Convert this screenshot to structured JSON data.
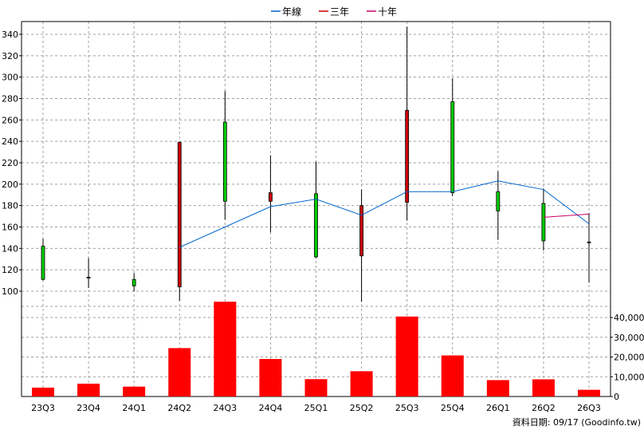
{
  "chart_data": {
    "type": "candlestick",
    "legend": {
      "placement": "top-center",
      "entries": [
        {
          "label": "年線",
          "color": "#0066cc"
        },
        {
          "label": "三年",
          "color": "#cc0000"
        },
        {
          "label": "十年",
          "color": "#cc0066"
        }
      ]
    },
    "categories": [
      "23Q3",
      "23Q4",
      "24Q1",
      "24Q2",
      "24Q3",
      "24Q4",
      "25Q1",
      "25Q2",
      "25Q3",
      "25Q4",
      "26Q1",
      "26Q2",
      "26Q3"
    ],
    "price_axis": {
      "ylim": [
        90,
        350
      ],
      "ticks": [
        100,
        120,
        140,
        160,
        180,
        200,
        220,
        240,
        260,
        280,
        300,
        320,
        340
      ]
    },
    "candles": [
      {
        "open": 111,
        "high": 149,
        "low": 110,
        "close": 142
      },
      {
        "open": 113,
        "high": 131,
        "low": 103,
        "close": 113
      },
      {
        "open": 105,
        "high": 117,
        "low": 100,
        "close": 111
      },
      {
        "open": 239,
        "high": 240,
        "low": 91,
        "close": 104
      },
      {
        "open": 184,
        "high": 287,
        "low": 167,
        "close": 258
      },
      {
        "open": 192,
        "high": 227,
        "low": 155,
        "close": 184
      },
      {
        "open": 132,
        "high": 221,
        "low": 131,
        "close": 191
      },
      {
        "open": 180,
        "high": 195,
        "low": 90,
        "close": 133
      },
      {
        "open": 269,
        "high": 347,
        "low": 166,
        "close": 183
      },
      {
        "open": 192,
        "high": 299,
        "low": 189,
        "close": 277
      },
      {
        "open": 175,
        "high": 212,
        "low": 148,
        "close": 193
      },
      {
        "open": 147,
        "high": 196,
        "low": 138,
        "close": 182
      },
      {
        "open": 146,
        "high": 173,
        "low": 108,
        "close": 146
      }
    ],
    "candle_colors": {
      "up": "#00cc00",
      "down": "#cc0000",
      "outline": "#000000"
    },
    "series": [
      {
        "name": "年線",
        "values": [
          null,
          null,
          null,
          141,
          160,
          179,
          186,
          171,
          193,
          193,
          203,
          195,
          163
        ]
      },
      {
        "name": "十年",
        "values": [
          null,
          null,
          null,
          null,
          null,
          null,
          null,
          null,
          null,
          null,
          null,
          169,
          172
        ]
      }
    ],
    "volume_axis": {
      "ylim": [
        0,
        48000
      ],
      "ticks": [
        0,
        10000,
        20000,
        30000,
        40000
      ],
      "tick_labels": [
        "0",
        "10,000",
        "20,000",
        "30,000",
        "40,000"
      ]
    },
    "volume": [
      4500,
      6500,
      5000,
      24500,
      48000,
      19000,
      8800,
      12800,
      40500,
      20800,
      8300,
      8700,
      3400
    ],
    "volume_color": "#ff0000",
    "grid": true,
    "footer": "資料日期: 09/17  (Goodinfo.tw)"
  }
}
